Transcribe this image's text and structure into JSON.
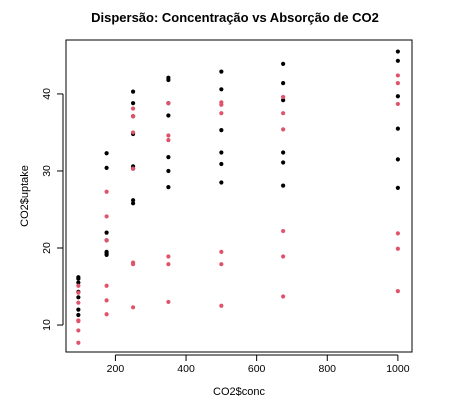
{
  "chart_data": {
    "type": "scatter",
    "title": "Dispersão: Concentração vs Absorção de CO2",
    "xlabel": "CO2$conc",
    "ylabel": "CO2$uptake",
    "xlim": [
      60,
      1040
    ],
    "ylim": [
      6.5,
      47
    ],
    "x_ticks": [
      200,
      400,
      600,
      800,
      1000
    ],
    "y_ticks": [
      10,
      20,
      30,
      40
    ],
    "grid": false,
    "legend": null,
    "series": [
      {
        "color": "#000000",
        "points": [
          [
            95,
            16.0
          ],
          [
            95,
            16.2
          ],
          [
            95,
            15.5
          ],
          [
            95,
            14.3
          ],
          [
            95,
            13.6
          ],
          [
            95,
            12.0
          ],
          [
            95,
            11.3
          ],
          [
            175,
            32.3
          ],
          [
            175,
            30.4
          ],
          [
            175,
            22.0
          ],
          [
            175,
            21.0
          ],
          [
            175,
            19.5
          ],
          [
            175,
            19.3
          ],
          [
            175,
            19.1
          ],
          [
            250,
            40.3
          ],
          [
            250,
            38.8
          ],
          [
            250,
            37.1
          ],
          [
            250,
            34.8
          ],
          [
            250,
            30.6
          ],
          [
            250,
            30.3
          ],
          [
            250,
            26.2
          ],
          [
            250,
            25.8
          ],
          [
            350,
            42.1
          ],
          [
            350,
            41.8
          ],
          [
            350,
            38.8
          ],
          [
            350,
            37.2
          ],
          [
            350,
            31.8
          ],
          [
            350,
            30.0
          ],
          [
            350,
            27.9
          ],
          [
            500,
            42.9
          ],
          [
            500,
            40.6
          ],
          [
            500,
            35.3
          ],
          [
            500,
            32.4
          ],
          [
            500,
            30.9
          ],
          [
            500,
            28.5
          ],
          [
            675,
            43.9
          ],
          [
            675,
            41.4
          ],
          [
            675,
            39.2
          ],
          [
            675,
            32.4
          ],
          [
            675,
            31.1
          ],
          [
            675,
            28.1
          ],
          [
            1000,
            45.5
          ],
          [
            1000,
            44.3
          ],
          [
            1000,
            39.7
          ],
          [
            1000,
            35.5
          ],
          [
            1000,
            31.5
          ],
          [
            1000,
            27.8
          ]
        ]
      },
      {
        "color": "#df536b",
        "points": [
          [
            95,
            15.1
          ],
          [
            95,
            14.2
          ],
          [
            95,
            12.9
          ],
          [
            95,
            10.6
          ],
          [
            95,
            10.5
          ],
          [
            95,
            9.3
          ],
          [
            95,
            7.7
          ],
          [
            175,
            27.3
          ],
          [
            175,
            24.1
          ],
          [
            175,
            21.0
          ],
          [
            175,
            15.1
          ],
          [
            175,
            13.2
          ],
          [
            175,
            11.4
          ],
          [
            250,
            38.1
          ],
          [
            250,
            37.1
          ],
          [
            250,
            35.0
          ],
          [
            250,
            30.3
          ],
          [
            250,
            18.1
          ],
          [
            250,
            17.9
          ],
          [
            250,
            12.3
          ],
          [
            350,
            38.8
          ],
          [
            350,
            34.6
          ],
          [
            350,
            34.0
          ],
          [
            350,
            18.9
          ],
          [
            350,
            17.9
          ],
          [
            350,
            13.0
          ],
          [
            500,
            38.9
          ],
          [
            500,
            38.6
          ],
          [
            500,
            37.5
          ],
          [
            500,
            19.5
          ],
          [
            500,
            17.9
          ],
          [
            500,
            12.5
          ],
          [
            675,
            39.6
          ],
          [
            675,
            37.5
          ],
          [
            675,
            35.4
          ],
          [
            675,
            22.2
          ],
          [
            675,
            18.9
          ],
          [
            675,
            13.7
          ],
          [
            1000,
            42.4
          ],
          [
            1000,
            41.4
          ],
          [
            1000,
            38.7
          ],
          [
            1000,
            21.9
          ],
          [
            1000,
            19.9
          ],
          [
            1000,
            14.4
          ]
        ]
      }
    ]
  }
}
